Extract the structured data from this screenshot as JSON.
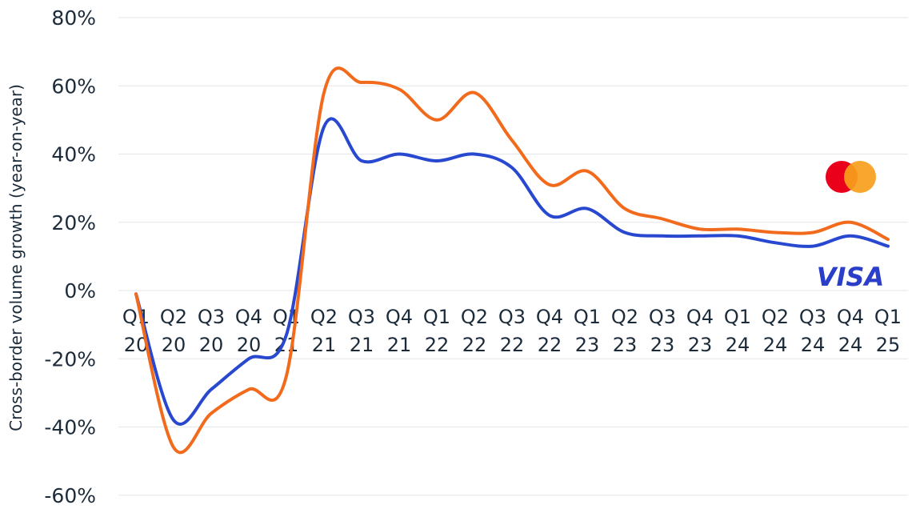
{
  "colors": {
    "mastercard": "#f26b1d",
    "visa": "#2748cf",
    "grid": "#e3e6ea",
    "text": "#1c2b3a",
    "mc_red": "#eb001b",
    "mc_yellow": "#f79e1b",
    "visa_logo": "#2a3ec9"
  },
  "chart_data": {
    "type": "line",
    "ylabel": "Cross-border volume growth (year-on-year)",
    "xlabel": "",
    "ylim": [
      -60,
      80
    ],
    "y_ticks": [
      80,
      60,
      40,
      20,
      0,
      -20,
      -40,
      -60
    ],
    "y_tick_labels": [
      "80%",
      "60%",
      "40%",
      "20%",
      "0%",
      "-20%",
      "-40%",
      "-60%"
    ],
    "categories": [
      [
        "Q1",
        "20"
      ],
      [
        "Q2",
        "20"
      ],
      [
        "Q3",
        "20"
      ],
      [
        "Q4",
        "20"
      ],
      [
        "Q1",
        "21"
      ],
      [
        "Q2",
        "21"
      ],
      [
        "Q3",
        "21"
      ],
      [
        "Q4",
        "21"
      ],
      [
        "Q1",
        "22"
      ],
      [
        "Q2",
        "22"
      ],
      [
        "Q3",
        "22"
      ],
      [
        "Q4",
        "22"
      ],
      [
        "Q1",
        "23"
      ],
      [
        "Q2",
        "23"
      ],
      [
        "Q3",
        "23"
      ],
      [
        "Q4",
        "23"
      ],
      [
        "Q1",
        "24"
      ],
      [
        "Q2",
        "24"
      ],
      [
        "Q3",
        "24"
      ],
      [
        "Q4",
        "24"
      ],
      [
        "Q1",
        "25"
      ]
    ],
    "grid": true,
    "series": [
      {
        "key": "visa",
        "logo": "VISA",
        "values": [
          -1,
          -38,
          -29,
          -20,
          -13,
          48,
          38,
          40,
          38,
          40,
          36,
          22,
          24,
          17,
          16,
          16,
          16,
          14,
          13,
          16,
          13
        ]
      },
      {
        "key": "mastercard",
        "logo": "mastercard-icon",
        "values": [
          -1,
          -46,
          -36,
          -29,
          -25,
          58,
          61,
          59,
          50,
          58,
          44,
          31,
          35,
          24,
          21,
          18,
          18,
          17,
          17,
          20,
          15
        ]
      }
    ]
  }
}
